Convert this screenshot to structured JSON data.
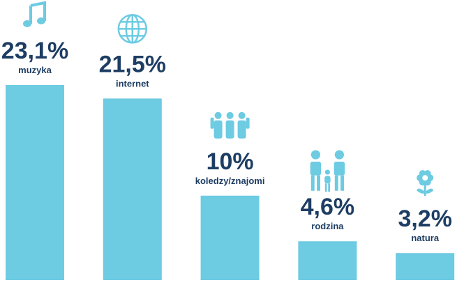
{
  "chart_data": {
    "type": "bar",
    "categories": [
      "muzyka",
      "internet",
      "koledzy/znajomi",
      "rodzina",
      "natura"
    ],
    "values": [
      23.1,
      21.5,
      10,
      4.6,
      3.2
    ],
    "value_labels": [
      "23,1%",
      "21,5%",
      "10%",
      "4,6%",
      "3,2%"
    ],
    "color": "#6dcbe2"
  }
}
